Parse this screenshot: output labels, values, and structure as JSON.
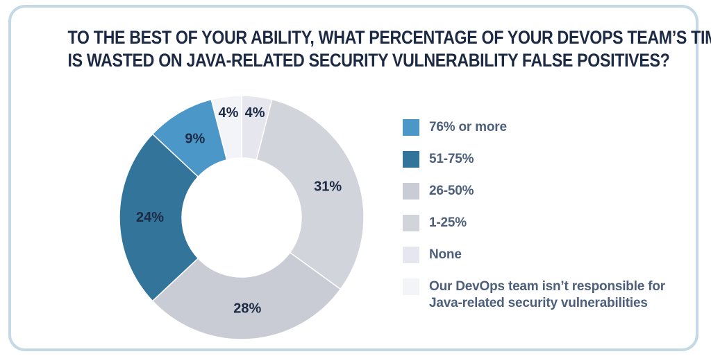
{
  "colors": {
    "frame_border": "#c5d8e6",
    "title": "#1d2a44",
    "legend_text": "#4d5f7a"
  },
  "chart_data": {
    "type": "pie",
    "subtype": "donut",
    "title": "TO THE BEST OF YOUR ABILITY, WHAT PERCENTAGE OF YOUR DEVOPS TEAM’S TIME IS WASTED ON JAVA-RELATED SECURITY VULNERABILITY FALSE POSITIVES?",
    "title_lines": [
      "TO THE BEST OF YOUR ABILITY, WHAT PERCENTAGE OF YOUR DEVOPS TEAM’S TIME",
      "IS WASTED ON JAVA-RELATED SECURITY VULNERABILITY FALSE POSITIVES?"
    ],
    "start": "top",
    "direction": "clockwise",
    "slices": [
      {
        "key": "none",
        "label": "None",
        "value": 4,
        "display": "4%",
        "color": "#e6e7ee",
        "label_color": "#1d2a44"
      },
      {
        "key": "1-25",
        "label": "1-25%",
        "value": 31,
        "display": "31%",
        "color": "#d2d4dc",
        "label_color": "#1d2a44"
      },
      {
        "key": "26-50",
        "label": "26-50%",
        "value": 28,
        "display": "28%",
        "color": "#c9ccd5",
        "label_color": "#1d2a44"
      },
      {
        "key": "51-75",
        "label": "51-75%",
        "value": 24,
        "display": "24%",
        "color": "#32749a",
        "label_color": "#ffffff"
      },
      {
        "key": "76plus",
        "label": "76% or more",
        "value": 9,
        "display": "9%",
        "color": "#4b97c8",
        "label_color": "#ffffff"
      },
      {
        "key": "not-responsible",
        "label": "Our DevOps team isn’t responsible for Java-related security vulnerabilities",
        "value": 4,
        "display": "4%",
        "color": "#f3f4f8",
        "label_color": "#1d2a44"
      }
    ],
    "legend": [
      {
        "key": "76plus",
        "lines": [
          "76% or more"
        ],
        "color": "#4b97c8"
      },
      {
        "key": "51-75",
        "lines": [
          "51-75%"
        ],
        "color": "#32749a"
      },
      {
        "key": "26-50",
        "lines": [
          "26-50%"
        ],
        "color": "#c9ccd5"
      },
      {
        "key": "1-25",
        "lines": [
          "1-25%"
        ],
        "color": "#d2d4dc"
      },
      {
        "key": "none",
        "lines": [
          "None"
        ],
        "color": "#e6e7ee"
      },
      {
        "key": "not-responsible",
        "lines": [
          "Our DevOps team isn’t responsible for",
          "Java-related security vulnerabilities"
        ],
        "color": "#f3f4f8"
      }
    ],
    "legend_position": "right"
  }
}
